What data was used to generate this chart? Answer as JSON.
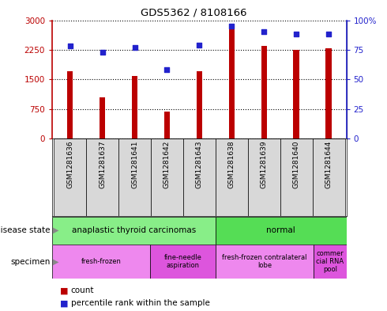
{
  "title": "GDS5362 / 8108166",
  "samples": [
    "GSM1281636",
    "GSM1281637",
    "GSM1281641",
    "GSM1281642",
    "GSM1281643",
    "GSM1281638",
    "GSM1281639",
    "GSM1281640",
    "GSM1281644"
  ],
  "counts": [
    1700,
    1050,
    1580,
    680,
    1700,
    2900,
    2350,
    2250,
    2280
  ],
  "percentiles": [
    78,
    73,
    77,
    58,
    79,
    95,
    90,
    88,
    88
  ],
  "ylim_left": [
    0,
    3000
  ],
  "ylim_right": [
    0,
    100
  ],
  "yticks_left": [
    0,
    750,
    1500,
    2250,
    3000
  ],
  "yticks_right": [
    0,
    25,
    50,
    75,
    100
  ],
  "bar_color": "#bb0000",
  "dot_color": "#2222cc",
  "disease_groups": [
    {
      "label": "anaplastic thyroid carcinomas",
      "start": 0,
      "end": 5,
      "color": "#88ee88"
    },
    {
      "label": "normal",
      "start": 5,
      "end": 9,
      "color": "#55dd55"
    }
  ],
  "specimen_groups": [
    {
      "label": "fresh-frozen",
      "start": 0,
      "end": 3,
      "color": "#ee88ee"
    },
    {
      "label": "fine-needle\naspiration",
      "start": 3,
      "end": 5,
      "color": "#dd55dd"
    },
    {
      "label": "fresh-frozen contralateral\nlobe",
      "start": 5,
      "end": 8,
      "color": "#ee88ee"
    },
    {
      "label": "commer\ncial RNA\npool",
      "start": 8,
      "end": 9,
      "color": "#dd55dd"
    }
  ],
  "bg_color": "#d8d8d8",
  "bar_width": 0.18
}
